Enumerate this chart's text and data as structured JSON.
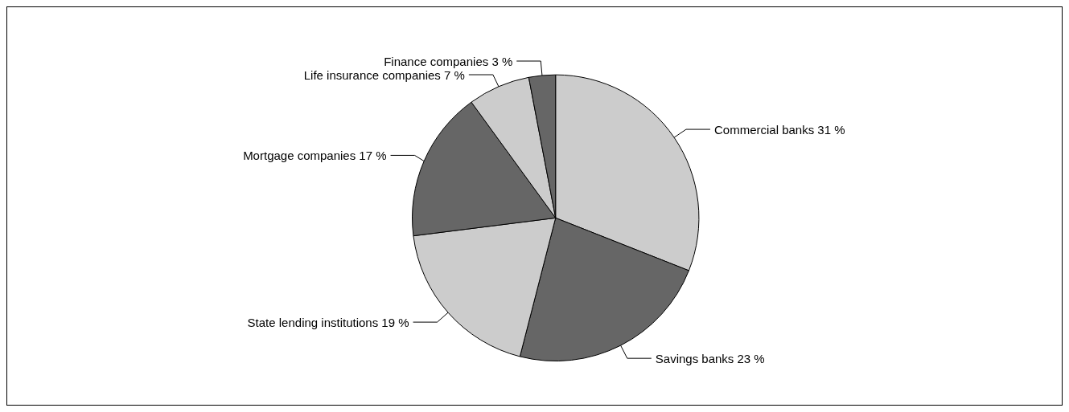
{
  "chart_data": {
    "type": "pie",
    "categories": [
      "Commercial banks",
      "Savings banks",
      "State lending institutions",
      "Mortgage companies",
      "Life insurance companies",
      "Finance companies"
    ],
    "values": [
      31,
      23,
      19,
      17,
      7,
      3
    ],
    "value_labels": [
      "31 %",
      "23 %",
      "19 %",
      "17 %",
      "7 %",
      "3 %"
    ],
    "colors": [
      "#cccccc",
      "#666666",
      "#cccccc",
      "#666666",
      "#cccccc",
      "#666666"
    ],
    "legend": false
  }
}
